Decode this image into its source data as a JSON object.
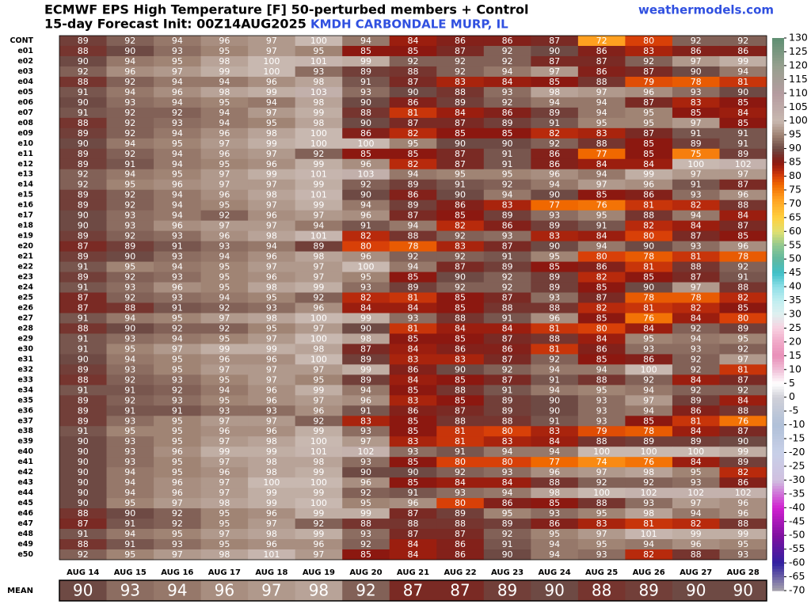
{
  "chart_data": {
    "type": "heatmap",
    "title": "ECMWF EPS High Temperature [F]  50-perturbed members + Control",
    "subtitle": "15-day Forecast Init: 00Z14AUG2025",
    "location": "KMDH CARBONDALE MURP, IL",
    "source": "weathermodels.com",
    "columns": [
      "AUG 14",
      "AUG 15",
      "AUG 16",
      "AUG 17",
      "AUG 18",
      "AUG 19",
      "AUG 20",
      "AUG 21",
      "AUG 22",
      "AUG 23",
      "AUG 24",
      "AUG 25",
      "AUG 26",
      "AUG 27",
      "AUG 28"
    ],
    "rows": [
      "CONT",
      "e01",
      "e02",
      "e03",
      "e04",
      "e05",
      "e06",
      "e07",
      "e08",
      "e09",
      "e10",
      "e11",
      "e12",
      "e13",
      "e14",
      "e15",
      "e16",
      "e17",
      "e18",
      "e19",
      "e20",
      "e21",
      "e22",
      "e23",
      "e24",
      "e25",
      "e26",
      "e27",
      "e28",
      "e29",
      "e30",
      "e31",
      "e32",
      "e33",
      "e34",
      "e35",
      "e36",
      "e37",
      "e38",
      "e39",
      "e40",
      "e41",
      "e42",
      "e43",
      "e44",
      "e45",
      "e46",
      "e47",
      "e48",
      "e49",
      "e50"
    ],
    "values": [
      [
        89,
        92,
        94,
        96,
        97,
        100,
        94,
        84,
        86,
        86,
        87,
        72,
        80,
        92,
        92
      ],
      [
        88,
        90,
        93,
        95,
        97,
        95,
        85,
        85,
        87,
        92,
        90,
        86,
        83,
        86,
        86
      ],
      [
        90,
        94,
        95,
        98,
        100,
        101,
        99,
        92,
        92,
        92,
        87,
        87,
        92,
        97,
        99
      ],
      [
        92,
        96,
        97,
        99,
        100,
        93,
        89,
        88,
        92,
        94,
        97,
        86,
        87,
        90,
        94
      ],
      [
        88,
        92,
        94,
        94,
        96,
        98,
        91,
        87,
        83,
        84,
        85,
        88,
        79,
        78,
        81
      ],
      [
        91,
        94,
        96,
        98,
        99,
        103,
        93,
        90,
        88,
        93,
        98,
        97,
        96,
        93,
        90
      ],
      [
        90,
        93,
        94,
        95,
        94,
        98,
        90,
        86,
        89,
        92,
        94,
        94,
        87,
        83,
        85
      ],
      [
        91,
        92,
        92,
        94,
        97,
        99,
        88,
        81,
        84,
        86,
        89,
        94,
        95,
        85,
        84
      ],
      [
        88,
        92,
        93,
        94,
        95,
        98,
        90,
        87,
        87,
        89,
        91,
        95,
        95,
        97,
        85
      ],
      [
        89,
        92,
        94,
        96,
        98,
        100,
        86,
        82,
        85,
        85,
        82,
        83,
        87,
        91,
        91
      ],
      [
        90,
        94,
        95,
        97,
        99,
        100,
        100,
        95,
        90,
        90,
        92,
        88,
        85,
        89,
        91
      ],
      [
        89,
        92,
        94,
        96,
        97,
        92,
        85,
        85,
        87,
        91,
        86,
        77,
        85,
        75,
        89
      ],
      [
        89,
        91,
        94,
        95,
        96,
        99,
        96,
        82,
        87,
        91,
        86,
        84,
        84,
        100,
        102
      ],
      [
        92,
        94,
        95,
        97,
        99,
        101,
        103,
        94,
        95,
        95,
        96,
        94,
        99,
        97,
        97
      ],
      [
        92,
        95,
        96,
        97,
        97,
        99,
        92,
        89,
        91,
        92,
        94,
        97,
        96,
        91,
        87
      ],
      [
        89,
        92,
        94,
        96,
        98,
        101,
        90,
        86,
        90,
        94,
        90,
        85,
        86,
        93,
        96
      ],
      [
        89,
        92,
        94,
        95,
        97,
        99,
        94,
        89,
        86,
        83,
        77,
        76,
        81,
        82,
        88
      ],
      [
        90,
        93,
        94,
        92,
        96,
        97,
        96,
        87,
        85,
        89,
        93,
        95,
        88,
        94,
        84
      ],
      [
        90,
        93,
        96,
        97,
        97,
        94,
        91,
        94,
        82,
        86,
        89,
        91,
        82,
        84,
        87
      ],
      [
        89,
        92,
        93,
        96,
        98,
        101,
        82,
        88,
        92,
        93,
        83,
        84,
        80,
        87,
        85
      ],
      [
        87,
        89,
        91,
        93,
        94,
        89,
        80,
        78,
        83,
        87,
        90,
        94,
        90,
        93,
        96
      ],
      [
        89,
        90,
        93,
        94,
        96,
        98,
        96,
        92,
        92,
        91,
        95,
        80,
        78,
        81,
        78
      ],
      [
        91,
        95,
        94,
        95,
        97,
        97,
        100,
        94,
        87,
        89,
        85,
        86,
        81,
        88,
        92
      ],
      [
        89,
        92,
        93,
        95,
        96,
        97,
        95,
        85,
        90,
        92,
        89,
        82,
        85,
        87,
        91
      ],
      [
        91,
        93,
        96,
        95,
        98,
        99,
        93,
        89,
        92,
        92,
        89,
        85,
        90,
        97,
        88
      ],
      [
        87,
        92,
        93,
        94,
        95,
        92,
        82,
        81,
        85,
        87,
        93,
        87,
        78,
        78,
        82
      ],
      [
        87,
        88,
        91,
        92,
        93,
        96,
        84,
        84,
        85,
        88,
        88,
        82,
        81,
        82,
        85
      ],
      [
        91,
        94,
        95,
        97,
        98,
        100,
        99,
        93,
        88,
        91,
        96,
        85,
        76,
        84,
        80
      ],
      [
        88,
        90,
        92,
        92,
        95,
        97,
        90,
        81,
        84,
        84,
        81,
        80,
        84,
        92,
        89
      ],
      [
        91,
        93,
        94,
        95,
        97,
        100,
        98,
        85,
        85,
        87,
        88,
        84,
        95,
        94,
        95
      ],
      [
        91,
        95,
        97,
        99,
        99,
        98,
        87,
        84,
        86,
        86,
        81,
        86,
        93,
        93,
        92
      ],
      [
        90,
        94,
        95,
        96,
        96,
        100,
        89,
        83,
        83,
        87,
        92,
        85,
        86,
        92,
        97
      ],
      [
        89,
        93,
        95,
        97,
        97,
        97,
        99,
        86,
        90,
        92,
        94,
        94,
        100,
        92,
        81
      ],
      [
        88,
        92,
        93,
        95,
        97,
        95,
        89,
        84,
        85,
        87,
        91,
        88,
        92,
        84,
        87
      ],
      [
        91,
        91,
        92,
        94,
        96,
        99,
        94,
        85,
        88,
        91,
        94,
        95,
        94,
        92,
        92
      ],
      [
        89,
        92,
        93,
        95,
        96,
        97,
        96,
        83,
        85,
        89,
        90,
        93,
        97,
        89,
        84
      ],
      [
        89,
        91,
        91,
        93,
        93,
        96,
        91,
        86,
        87,
        89,
        90,
        93,
        94,
        86,
        88
      ],
      [
        89,
        93,
        95,
        97,
        97,
        92,
        83,
        85,
        88,
        88,
        91,
        93,
        85,
        81,
        76
      ],
      [
        91,
        95,
        95,
        96,
        96,
        99,
        93,
        85,
        81,
        80,
        83,
        79,
        78,
        84,
        87
      ],
      [
        90,
        93,
        95,
        97,
        98,
        100,
        97,
        83,
        81,
        83,
        84,
        88,
        89,
        89,
        90
      ],
      [
        90,
        93,
        96,
        99,
        99,
        101,
        102,
        93,
        91,
        94,
        94,
        100,
        100,
        100,
        99
      ],
      [
        90,
        93,
        95,
        97,
        98,
        98,
        93,
        85,
        80,
        80,
        77,
        74,
        76,
        84,
        89
      ],
      [
        90,
        94,
        95,
        96,
        98,
        99,
        90,
        90,
        92,
        93,
        96,
        97,
        98,
        95,
        82
      ],
      [
        90,
        94,
        96,
        97,
        100,
        100,
        96,
        85,
        84,
        84,
        88,
        92,
        92,
        93,
        86
      ],
      [
        90,
        94,
        96,
        97,
        99,
        99,
        92,
        91,
        93,
        94,
        98,
        100,
        102,
        102,
        102
      ],
      [
        90,
        95,
        97,
        98,
        99,
        100,
        95,
        96,
        80,
        86,
        85,
        88,
        93,
        97,
        96
      ],
      [
        88,
        90,
        92,
        95,
        96,
        99,
        99,
        87,
        89,
        95,
        93,
        95,
        98,
        94,
        96
      ],
      [
        87,
        91,
        92,
        95,
        97,
        92,
        88,
        88,
        88,
        89,
        86,
        83,
        81,
        82,
        88
      ],
      [
        91,
        94,
        95,
        97,
        98,
        99,
        93,
        87,
        87,
        92,
        95,
        97,
        101,
        99,
        99
      ],
      [
        88,
        91,
        93,
        95,
        96,
        96,
        92,
        84,
        86,
        91,
        94,
        95,
        94,
        96,
        95
      ],
      [
        92,
        95,
        97,
        98,
        101,
        97,
        85,
        84,
        86,
        90,
        94,
        93,
        82,
        88,
        93
      ]
    ],
    "mean_label": "MEAN",
    "mean": [
      90,
      93,
      94,
      96,
      97,
      98,
      92,
      87,
      87,
      89,
      90,
      88,
      89,
      90,
      90
    ],
    "clim": [
      -70,
      130
    ],
    "cticks": [
      130,
      125,
      120,
      115,
      110,
      105,
      100,
      95,
      90,
      85,
      80,
      75,
      70,
      65,
      60,
      55,
      50,
      45,
      40,
      35,
      30,
      25,
      20,
      15,
      10,
      5,
      0,
      -5,
      -10,
      -15,
      -20,
      -25,
      -30,
      -35,
      -40,
      -45,
      -50,
      -55,
      -60,
      -65,
      -70
    ],
    "colorscale": [
      [
        -70,
        "#a8a4ac"
      ],
      [
        -60,
        "#3020a0"
      ],
      [
        -50,
        "#8010a0"
      ],
      [
        -40,
        "#d020d0"
      ],
      [
        -30,
        "#d0c0e0"
      ],
      [
        -20,
        "#c8d0e8"
      ],
      [
        -10,
        "#b0c0d8"
      ],
      [
        0,
        "#d0d0d8"
      ],
      [
        5,
        "#ffffff"
      ],
      [
        10,
        "#f0c0d8"
      ],
      [
        15,
        "#e890b8"
      ],
      [
        20,
        "#f0a8c8"
      ],
      [
        25,
        "#f8d0e0"
      ],
      [
        30,
        "#e0f0f0"
      ],
      [
        35,
        "#c0eef0"
      ],
      [
        40,
        "#90e0e8"
      ],
      [
        45,
        "#40c0c8"
      ],
      [
        50,
        "#60b8a0"
      ],
      [
        55,
        "#90c890"
      ],
      [
        60,
        "#e0e070"
      ],
      [
        65,
        "#ffd040"
      ],
      [
        72,
        "#ffa020"
      ],
      [
        77,
        "#f06800"
      ],
      [
        80,
        "#d84008"
      ],
      [
        82,
        "#b82a0c"
      ],
      [
        85,
        "#8c1810"
      ],
      [
        87,
        "#7a2a24"
      ],
      [
        90,
        "#6e4a44"
      ],
      [
        95,
        "#a08474"
      ],
      [
        100,
        "#c8b8b0"
      ],
      [
        110,
        "#b59ca0"
      ],
      [
        120,
        "#96a08e"
      ],
      [
        130,
        "#5f8f73"
      ]
    ]
  }
}
